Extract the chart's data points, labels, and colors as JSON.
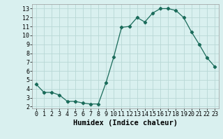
{
  "x": [
    0,
    1,
    2,
    3,
    4,
    5,
    6,
    7,
    8,
    9,
    10,
    11,
    12,
    13,
    14,
    15,
    16,
    17,
    18,
    19,
    20,
    21,
    22,
    23
  ],
  "y": [
    4.5,
    3.6,
    3.6,
    3.3,
    2.6,
    2.6,
    2.4,
    2.3,
    2.3,
    4.7,
    7.6,
    10.9,
    11.0,
    12.0,
    11.5,
    12.5,
    13.0,
    13.0,
    12.8,
    12.0,
    10.4,
    9.0,
    7.5,
    6.5
  ],
  "xlabel": "Humidex (Indice chaleur)",
  "xlim": [
    -0.5,
    23.5
  ],
  "ylim": [
    1.8,
    13.5
  ],
  "yticks": [
    2,
    3,
    4,
    5,
    6,
    7,
    8,
    9,
    10,
    11,
    12,
    13
  ],
  "xticks": [
    0,
    1,
    2,
    3,
    4,
    5,
    6,
    7,
    8,
    9,
    10,
    11,
    12,
    13,
    14,
    15,
    16,
    17,
    18,
    19,
    20,
    21,
    22,
    23
  ],
  "line_color": "#1a6b5a",
  "marker": "D",
  "marker_size": 2.2,
  "bg_color": "#d9f0ef",
  "grid_color": "#b8d8d5",
  "label_fontsize": 7.5,
  "tick_fontsize": 6.0
}
